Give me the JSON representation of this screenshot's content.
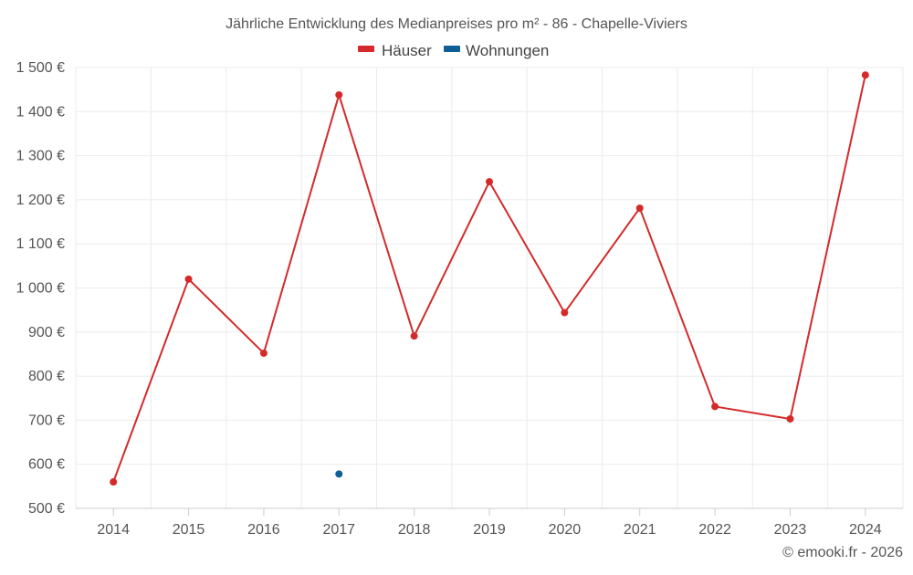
{
  "chart_data": {
    "type": "line",
    "title": "Jährliche Entwicklung des Medianpreises pro m² - 86 - Chapelle-Viviers",
    "categories": [
      "2014",
      "2015",
      "2016",
      "2017",
      "2018",
      "2019",
      "2020",
      "2021",
      "2022",
      "2023",
      "2024"
    ],
    "ylim": [
      500,
      1500
    ],
    "y_ticks": [
      500,
      600,
      700,
      800,
      900,
      1000,
      1100,
      1200,
      1300,
      1400,
      1500
    ],
    "y_tick_labels": [
      "500 €",
      "600 €",
      "700 €",
      "800 €",
      "900 €",
      "1 000 €",
      "1 100 €",
      "1 200 €",
      "1 300 €",
      "1 400 €",
      "1 500 €"
    ],
    "grid": true,
    "legend_position": "top-center",
    "series": [
      {
        "name": "Häuser",
        "color": "#d42a2a",
        "values": [
          560,
          1020,
          852,
          1438,
          891,
          1241,
          944,
          1181,
          731,
          703,
          1483
        ]
      },
      {
        "name": "Wohnungen",
        "color": "#0d5f96",
        "values": [
          null,
          null,
          null,
          578,
          null,
          null,
          null,
          null,
          null,
          null,
          null
        ]
      }
    ],
    "credit": "© emooki.fr - 2026"
  }
}
